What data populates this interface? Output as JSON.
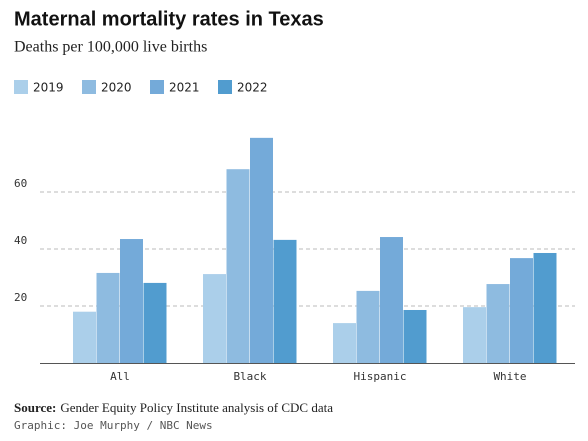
{
  "chart_data": {
    "type": "bar",
    "title": "Maternal mortality rates in Texas",
    "subtitle": "Deaths per 100,000 live births",
    "categories": [
      "All",
      "Black",
      "Hispanic",
      "White"
    ],
    "series": [
      {
        "name": "2019",
        "color": "#abcfea",
        "values": [
          18,
          31.2,
          14,
          19.6
        ]
      },
      {
        "name": "2020",
        "color": "#8ebbe0",
        "values": [
          31.6,
          68,
          25.3,
          27.7
        ]
      },
      {
        "name": "2021",
        "color": "#74aad9",
        "values": [
          43.5,
          79,
          44.2,
          36.8
        ]
      },
      {
        "name": "2022",
        "color": "#519ccf",
        "values": [
          28.1,
          43.2,
          18.6,
          38.6
        ]
      }
    ],
    "ylim": [
      0,
      80
    ],
    "yticks": [
      20,
      40,
      60
    ],
    "grid": true,
    "source_label": "Source:",
    "source": "Gender Equity Policy Institute analysis of CDC data",
    "credit": "Graphic: Joe Murphy / NBC News"
  }
}
